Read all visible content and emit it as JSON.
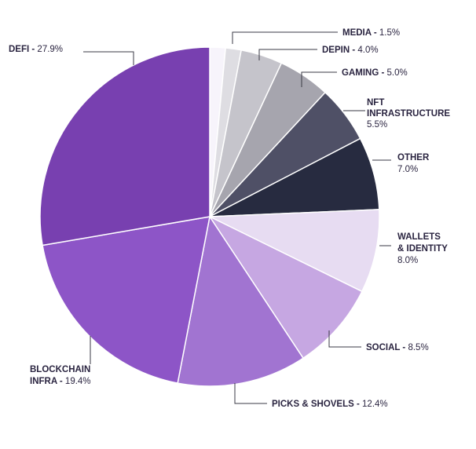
{
  "chart_data": {
    "type": "pie",
    "title": "",
    "start_angle_deg": 0,
    "direction": "clockwise",
    "slices": [
      {
        "label": "MEDIA",
        "label_lines": [
          "MEDIA - 1.5%"
        ],
        "value": 1.5,
        "value_text": "1.5%",
        "color": "#f7f4fb"
      },
      {
        "label": "MEDIA",
        "label_lines": [],
        "value": 1.5,
        "value_text": "",
        "color": "#dedde2"
      },
      {
        "label": "DEPIN",
        "label_lines": [
          "DEPIN - 4.0%"
        ],
        "value": 4.0,
        "value_text": "4.0%",
        "color": "#c5c4cb"
      },
      {
        "label": "GAMING",
        "label_lines": [
          "GAMING - 5.0%"
        ],
        "value": 5.0,
        "value_text": "5.0%",
        "color": "#a6a5ae"
      },
      {
        "label": "NFT INFRASTRUCTURE",
        "label_lines": [
          "NFT",
          "INFRASTRUCTURE",
          "5.5%"
        ],
        "value": 5.5,
        "value_text": "5.5%",
        "color": "#4f5066"
      },
      {
        "label": "OTHER",
        "label_lines": [
          "OTHER",
          "7.0%"
        ],
        "value": 7.0,
        "value_text": "7.0%",
        "color": "#272b40"
      },
      {
        "label": "WALLETS & IDENTITY",
        "label_lines": [
          "WALLETS",
          "& IDENTITY",
          "8.0%"
        ],
        "value": 8.0,
        "value_text": "8.0%",
        "color": "#e7dcf2"
      },
      {
        "label": "SOCIAL",
        "label_lines": [
          "SOCIAL - 8.5%"
        ],
        "value": 8.5,
        "value_text": "8.5%",
        "color": "#c6a7e2"
      },
      {
        "label": "PICKS & SHOVELS",
        "label_lines": [
          "PICKS & SHOVELS - 12.4%"
        ],
        "value": 12.4,
        "value_text": "12.4%",
        "color": "#a174d1"
      },
      {
        "label": "BLOCKCHAIN INFRA",
        "label_lines": [
          "BLOCKCHAIN",
          "INFRA - 19.4%"
        ],
        "value": 19.4,
        "value_text": "19.4%",
        "color": "#8d55c7"
      },
      {
        "label": "DEFI",
        "label_lines": [
          "DEFI - 27.9%"
        ],
        "value": 27.9,
        "value_text": "27.9%",
        "color": "#7840b0"
      }
    ]
  }
}
